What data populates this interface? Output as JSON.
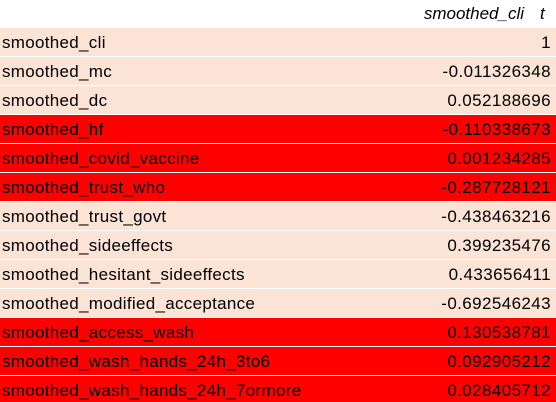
{
  "header": {
    "column_title": "smoothed_cli",
    "next_column_fragment": "t"
  },
  "rows": [
    {
      "name": "smoothed_cli",
      "value": "1",
      "fill": "light"
    },
    {
      "name": "smoothed_mc",
      "value": "-0.011326348",
      "fill": "light"
    },
    {
      "name": "smoothed_dc",
      "value": "0.052188696",
      "fill": "light"
    },
    {
      "name": "smoothed_hf",
      "value": "-0.110338673",
      "fill": "red"
    },
    {
      "name": "smoothed_covid_vaccine",
      "value": "0.001234285",
      "fill": "red"
    },
    {
      "name": "smoothed_trust_who",
      "value": "-0.287728121",
      "fill": "red"
    },
    {
      "name": "smoothed_trust_govt",
      "value": "-0.438463216",
      "fill": "light"
    },
    {
      "name": "smoothed_sideeffects",
      "value": "0.399235476",
      "fill": "light"
    },
    {
      "name": "smoothed_hesitant_sideeffects",
      "value": "0.433656411",
      "fill": "light"
    },
    {
      "name": "smoothed_modified_acceptance",
      "value": "-0.692546243",
      "fill": "light"
    },
    {
      "name": "smoothed_access_wash",
      "value": "0.130538781",
      "fill": "red"
    },
    {
      "name": "smoothed_wash_hands_24h_3to6",
      "value": "0.092905212",
      "fill": "red"
    },
    {
      "name": "smoothed_wash_hands_24h_7ormore",
      "value": "0.028405712",
      "fill": "red"
    }
  ],
  "colors": {
    "light": "#fbe3d6",
    "red": "#ff0000"
  }
}
